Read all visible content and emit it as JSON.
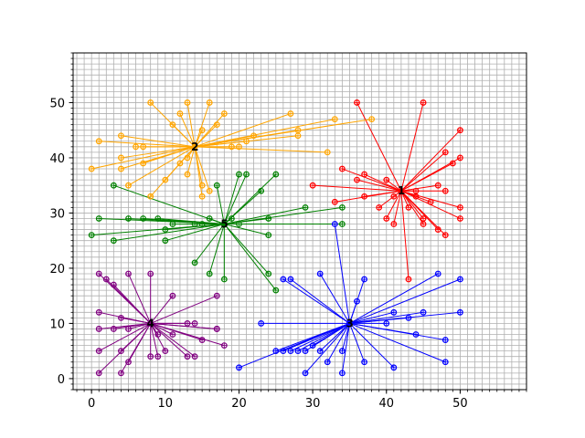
{
  "chart_data": {
    "type": "scatter",
    "title": "",
    "xlabel": "",
    "ylabel": "",
    "xlim": [
      -2.5,
      59
    ],
    "ylim": [
      -2,
      59
    ],
    "grid": true,
    "grid_minor_step": 1,
    "xticks": [
      0,
      10,
      20,
      30,
      40,
      50
    ],
    "yticks": [
      0,
      10,
      20,
      30,
      40,
      50
    ],
    "xtick_labels": [
      "0",
      "10",
      "20",
      "30",
      "40",
      "50"
    ],
    "ytick_labels": [
      "0",
      "10",
      "20",
      "30",
      "40",
      "50"
    ],
    "clusters": [
      {
        "label": "1",
        "color": "#ff0000",
        "center": [
          42,
          34
        ],
        "points": [
          [
            36,
            50
          ],
          [
            45,
            50
          ],
          [
            50,
            45
          ],
          [
            48,
            41
          ],
          [
            50,
            40
          ],
          [
            49,
            39
          ],
          [
            34,
            38
          ],
          [
            37,
            37
          ],
          [
            40,
            36
          ],
          [
            36,
            36
          ],
          [
            30,
            35
          ],
          [
            47,
            35
          ],
          [
            44,
            34
          ],
          [
            41,
            33
          ],
          [
            33,
            32
          ],
          [
            46,
            32
          ],
          [
            43,
            31
          ],
          [
            39,
            31
          ],
          [
            50,
            31
          ],
          [
            40,
            29
          ],
          [
            45,
            29
          ],
          [
            50,
            29
          ],
          [
            41,
            28
          ],
          [
            45,
            28
          ],
          [
            47,
            27
          ],
          [
            48,
            26
          ],
          [
            43,
            18
          ],
          [
            44,
            33
          ],
          [
            37,
            33
          ],
          [
            48,
            34
          ]
        ]
      },
      {
        "label": "2",
        "color": "#ffa500",
        "center": [
          14,
          42
        ],
        "points": [
          [
            8,
            50
          ],
          [
            13,
            50
          ],
          [
            16,
            50
          ],
          [
            12,
            48
          ],
          [
            18,
            48
          ],
          [
            27,
            48
          ],
          [
            33,
            47
          ],
          [
            38,
            47
          ],
          [
            17,
            46
          ],
          [
            11,
            46
          ],
          [
            15,
            45
          ],
          [
            28,
            45
          ],
          [
            4,
            44
          ],
          [
            22,
            44
          ],
          [
            28,
            44
          ],
          [
            1,
            43
          ],
          [
            7,
            42
          ],
          [
            19,
            42
          ],
          [
            20,
            42
          ],
          [
            6,
            42
          ],
          [
            4,
            40
          ],
          [
            13,
            40
          ],
          [
            32,
            41
          ],
          [
            12,
            39
          ],
          [
            7,
            39
          ],
          [
            0,
            38
          ],
          [
            4,
            38
          ],
          [
            13,
            37
          ],
          [
            10,
            36
          ],
          [
            15,
            35
          ],
          [
            16,
            34
          ],
          [
            5,
            35
          ],
          [
            8,
            33
          ],
          [
            15,
            33
          ],
          [
            21,
            43
          ]
        ]
      },
      {
        "label": "3",
        "color": "#0000ff",
        "center": [
          35,
          10
        ],
        "points": [
          [
            37,
            18
          ],
          [
            47,
            19
          ],
          [
            26,
            18
          ],
          [
            27,
            18
          ],
          [
            31,
            19
          ],
          [
            50,
            18
          ],
          [
            33,
            28
          ],
          [
            36,
            14
          ],
          [
            41,
            12
          ],
          [
            43,
            11
          ],
          [
            45,
            12
          ],
          [
            50,
            12
          ],
          [
            23,
            10
          ],
          [
            40,
            10
          ],
          [
            44,
            8
          ],
          [
            25,
            5
          ],
          [
            26,
            5
          ],
          [
            27,
            5
          ],
          [
            28,
            5
          ],
          [
            29,
            5
          ],
          [
            31,
            5
          ],
          [
            34,
            5
          ],
          [
            48,
            7
          ],
          [
            29,
            1
          ],
          [
            32,
            3
          ],
          [
            34,
            1
          ],
          [
            37,
            3
          ],
          [
            41,
            2
          ],
          [
            48,
            3
          ],
          [
            20,
            2
          ],
          [
            30,
            6
          ]
        ]
      },
      {
        "label": "4",
        "color": "#800080",
        "center": [
          8,
          10
        ],
        "points": [
          [
            1,
            19
          ],
          [
            2,
            18
          ],
          [
            3,
            17
          ],
          [
            5,
            19
          ],
          [
            8,
            19
          ],
          [
            17,
            15
          ],
          [
            11,
            15
          ],
          [
            1,
            12
          ],
          [
            4,
            11
          ],
          [
            13,
            10
          ],
          [
            14,
            10
          ],
          [
            17,
            9
          ],
          [
            1,
            9
          ],
          [
            3,
            9
          ],
          [
            5,
            9
          ],
          [
            9,
            8
          ],
          [
            11,
            8
          ],
          [
            15,
            7
          ],
          [
            1,
            5
          ],
          [
            4,
            5
          ],
          [
            10,
            5
          ],
          [
            13,
            4
          ],
          [
            8,
            4
          ],
          [
            9,
            4
          ],
          [
            14,
            4
          ],
          [
            18,
            6
          ],
          [
            5,
            3
          ],
          [
            1,
            1
          ],
          [
            4,
            1
          ],
          [
            17,
            9
          ]
        ]
      },
      {
        "label": "5",
        "color": "#008000",
        "center": [
          18,
          28
        ],
        "points": [
          [
            3,
            35
          ],
          [
            17,
            35
          ],
          [
            20,
            37
          ],
          [
            21,
            37
          ],
          [
            25,
            37
          ],
          [
            23,
            34
          ],
          [
            29,
            31
          ],
          [
            34,
            31
          ],
          [
            1,
            29
          ],
          [
            5,
            29
          ],
          [
            7,
            29
          ],
          [
            9,
            29
          ],
          [
            16,
            29
          ],
          [
            24,
            29
          ],
          [
            34,
            28
          ],
          [
            11,
            28
          ],
          [
            15,
            28
          ],
          [
            20,
            28
          ],
          [
            0,
            26
          ],
          [
            3,
            25
          ],
          [
            10,
            25
          ],
          [
            10,
            27
          ],
          [
            24,
            26
          ],
          [
            14,
            21
          ],
          [
            16,
            19
          ],
          [
            18,
            18
          ],
          [
            24,
            19
          ],
          [
            25,
            16
          ],
          [
            14,
            28
          ],
          [
            19,
            29
          ]
        ]
      }
    ]
  }
}
